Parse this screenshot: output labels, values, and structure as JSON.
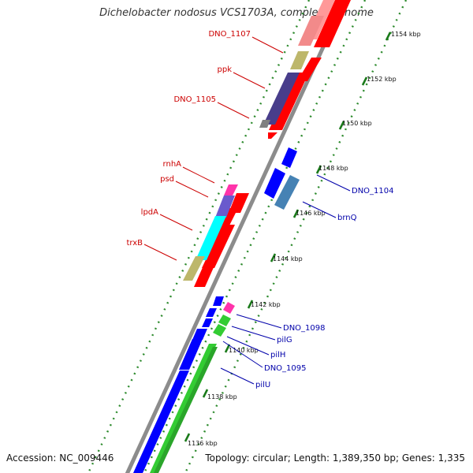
{
  "title": "Dichelobacter nodosus VCS1703A, complete genome",
  "footer": {
    "accession": "Accession: NC_009446",
    "summary": "Topology: circular; Length: 1,389,350 bp; Genes: 1,335"
  },
  "colors": {
    "backbone": "#8c8c8c",
    "forward_cds": "#ff0000",
    "reverse_cds": "#0000ff",
    "rna_green": "#33cc33",
    "label_forward": "#cc0000",
    "label_reverse": "#0000aa",
    "ruler_dots": "#2e8b2e"
  },
  "ruler": [
    {
      "label": "1136 kbp",
      "kbp": 1136
    },
    {
      "label": "1138 kbp",
      "kbp": 1138
    },
    {
      "label": "1140 kbp",
      "kbp": 1140
    },
    {
      "label": "1142 kbp",
      "kbp": 1142
    },
    {
      "label": "1144 kbp",
      "kbp": 1144
    },
    {
      "label": "1146 kbp",
      "kbp": 1146
    },
    {
      "label": "1148 kbp",
      "kbp": 1148
    },
    {
      "label": "1150 kbp",
      "kbp": 1150
    },
    {
      "label": "1152 kbp",
      "kbp": 1152
    },
    {
      "label": "1154 kbp",
      "kbp": 1154
    }
  ],
  "labels_left": [
    {
      "text": "DNO_1107",
      "kbp": 1155.0
    },
    {
      "text": "ppk",
      "kbp": 1152.4
    },
    {
      "text": "DNO_1105",
      "kbp": 1150.8
    },
    {
      "text": "rnhA",
      "kbp": 1147.1
    },
    {
      "text": "psd",
      "kbp": 1146.6
    },
    {
      "text": "lpdA",
      "kbp": 1145.5
    },
    {
      "text": "trxB",
      "kbp": 1144.4
    }
  ],
  "labels_right": [
    {
      "text": "DNO_1104",
      "kbp": 1147.6
    },
    {
      "text": "brnQ",
      "kbp": 1147.0
    },
    {
      "text": "DNO_1098",
      "kbp": 1142.0
    },
    {
      "text": "pilG",
      "kbp": 1141.7
    },
    {
      "text": "pilH",
      "kbp": 1141.4
    },
    {
      "text": "DNO_1095",
      "kbp": 1141.0
    },
    {
      "text": "pilU",
      "kbp": 1140.4
    }
  ]
}
